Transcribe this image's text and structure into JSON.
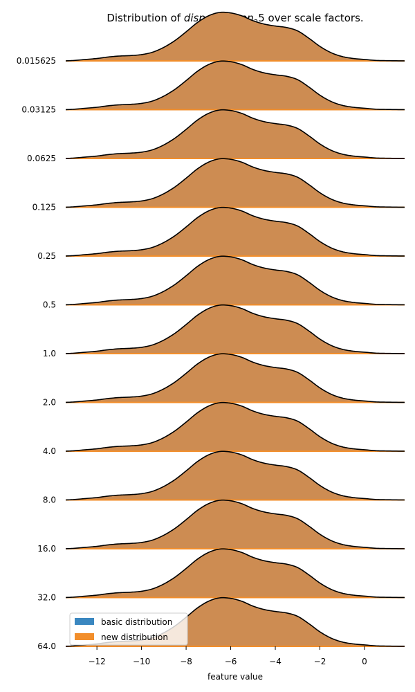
{
  "chart_data": {
    "type": "area",
    "title": "Distribution of disp. diff_mean_2 5 over scale factors.",
    "title_parts": {
      "prefix": "Distribution of ",
      "math_main": "disp. diff",
      "math_sub1": "m",
      "math_mid": "ean",
      "math_sub2": "2",
      "math_tail": "5",
      "suffix": " over scale factors."
    },
    "xlabel": "feature value",
    "xlim": [
      -13.4,
      1.8
    ],
    "xticks": [
      -12,
      -10,
      -8,
      -6,
      -4,
      -2,
      0
    ],
    "xtick_labels": [
      "−12",
      "−10",
      "−8",
      "−6",
      "−4",
      "−2",
      "0"
    ],
    "row_labels": [
      "0.015625",
      "0.03125",
      "0.0625",
      "0.125",
      "0.25",
      "0.5",
      "1.0",
      "2.0",
      "4.0",
      "8.0",
      "16.0",
      "32.0",
      "64.0"
    ],
    "legend": {
      "position": "lower-left",
      "entries": [
        {
          "label": "basic distribution",
          "color": "#3a87c0"
        },
        {
          "label": "new distribution",
          "color": "#f28e2b"
        }
      ]
    },
    "colors": {
      "overlap_fill": "#cd8c52",
      "outline": "#000000",
      "baseline": "#f28e2b"
    },
    "density_x": [
      -13.4,
      -13,
      -12.5,
      -12,
      -11.5,
      -11,
      -10.5,
      -10,
      -9.5,
      -9,
      -8.5,
      -8,
      -7.5,
      -7,
      -6.5,
      -6,
      -5.5,
      -5,
      -4.5,
      -4,
      -3.5,
      -3,
      -2.5,
      -2,
      -1.5,
      -1,
      -0.5,
      0,
      0.5,
      1,
      1.8
    ],
    "density_y": [
      0.0,
      0.01,
      0.03,
      0.05,
      0.08,
      0.1,
      0.11,
      0.13,
      0.18,
      0.28,
      0.42,
      0.6,
      0.79,
      0.93,
      1.0,
      0.99,
      0.93,
      0.83,
      0.76,
      0.72,
      0.69,
      0.62,
      0.47,
      0.3,
      0.17,
      0.09,
      0.05,
      0.03,
      0.01,
      0.005,
      0.0
    ]
  }
}
